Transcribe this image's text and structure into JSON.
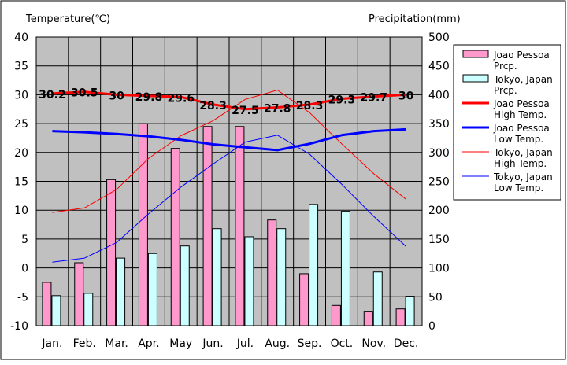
{
  "chart_data": {
    "type": "bar",
    "left_axis_title": "Temperature(℃)",
    "right_axis_title": "Precipitation(mm)",
    "categories": [
      "Jan.",
      "Feb.",
      "Mar.",
      "Apr.",
      "May",
      "Jun.",
      "Jul.",
      "Aug.",
      "Sep.",
      "Oct.",
      "Nov.",
      "Dec."
    ],
    "y_left": {
      "min": -10,
      "max": 40,
      "step": 5,
      "ticks": [
        "40",
        "35",
        "30",
        "25",
        "20",
        "15",
        "10",
        "5",
        "0",
        "-5",
        "-10"
      ]
    },
    "y_right": {
      "min": 0,
      "max": 500,
      "step": 50,
      "ticks": [
        "500",
        "450",
        "400",
        "350",
        "300",
        "250",
        "200",
        "150",
        "100",
        "50",
        "0"
      ]
    },
    "grid": true,
    "plot_background": "#c0c0c0",
    "legend_position": "right",
    "bar_series": [
      {
        "name": "Joao Pessoa Prcp.",
        "axis": "right",
        "color": "#ff99cc",
        "values": [
          75,
          109,
          253,
          350,
          307,
          345,
          345,
          183,
          90,
          35,
          25,
          29
        ]
      },
      {
        "name": "Tokyo, Japan Prcp.",
        "axis": "right",
        "color": "#ccffff",
        "values": [
          52,
          56,
          117,
          125,
          138,
          168,
          154,
          168,
          210,
          198,
          93,
          51
        ]
      }
    ],
    "line_series": [
      {
        "name": "Joao Pessoa High Temp.",
        "axis": "left",
        "color": "#ff0000",
        "width": 3,
        "values": [
          30.2,
          30.5,
          30,
          29.8,
          29.6,
          28.3,
          27.5,
          27.8,
          28.3,
          29.3,
          29.7,
          30
        ],
        "labels": [
          "30.2",
          "30.5",
          "30",
          "29.8",
          "29.6",
          "28.3",
          "27.5",
          "27.8",
          "28.3",
          "29.3",
          "29.7",
          "30"
        ]
      },
      {
        "name": "Joao Pessoa Low Temp.",
        "axis": "left",
        "color": "#0000ff",
        "width": 3,
        "values": [
          23.7,
          23.5,
          23.2,
          22.8,
          22.2,
          21.4,
          20.9,
          20.4,
          21.5,
          23.0,
          23.7,
          24.0
        ]
      },
      {
        "name": "Tokyo, Japan High Temp.",
        "axis": "left",
        "color": "#ff0000",
        "width": 1,
        "values": [
          9.6,
          10.4,
          13.6,
          19.0,
          22.9,
          25.5,
          29.2,
          30.8,
          26.9,
          21.5,
          16.3,
          11.9
        ]
      },
      {
        "name": "Tokyo, Japan Low Temp.",
        "axis": "left",
        "color": "#0000ff",
        "width": 1,
        "values": [
          1.0,
          1.7,
          4.4,
          9.4,
          14.0,
          18.0,
          21.8,
          23.0,
          19.7,
          14.5,
          8.9,
          3.7
        ]
      }
    ],
    "legend": [
      {
        "kind": "bar",
        "color": "#ff99cc",
        "lines": [
          "Joao Pessoa",
          "Prcp."
        ]
      },
      {
        "kind": "bar",
        "color": "#ccffff",
        "lines": [
          "Tokyo, Japan",
          "Prcp."
        ]
      },
      {
        "kind": "line",
        "color": "#ff0000",
        "width": 3,
        "lines": [
          "Joao Pessoa",
          "High Temp."
        ]
      },
      {
        "kind": "line",
        "color": "#0000ff",
        "width": 3,
        "lines": [
          "Joao Pessoa",
          "Low Temp."
        ]
      },
      {
        "kind": "line",
        "color": "#ff0000",
        "width": 1,
        "lines": [
          "Tokyo, Japan",
          "High Temp."
        ]
      },
      {
        "kind": "line",
        "color": "#0000ff",
        "width": 1,
        "lines": [
          "Tokyo, Japan",
          "Low Temp."
        ]
      }
    ]
  }
}
